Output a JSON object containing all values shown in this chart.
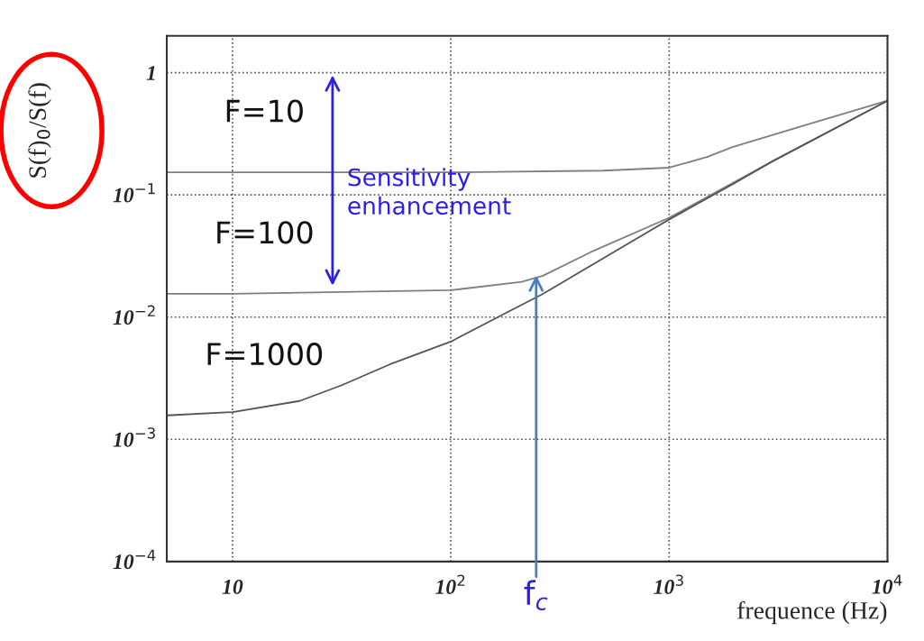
{
  "chart_data": {
    "type": "line",
    "xlabel": "frequence (Hz)",
    "ylabel": "S(f)$_{0}$/S(f)",
    "log": "xy",
    "grid": true,
    "marker": "none",
    "line_style": "solid",
    "xlim": [
      5,
      10000
    ],
    "ylim": [
      0.0001,
      2
    ],
    "xticks": [
      10,
      {
        "value": 100,
        "label": "10$^{2}$"
      },
      {
        "value": 1000,
        "label": "10$^{3}$"
      },
      {
        "value": 10000,
        "label": "10$^{4}$"
      }
    ],
    "yticks": [
      {
        "value": 0.0001,
        "label": "10$^{−4}$"
      },
      {
        "value": 0.001,
        "label": "10$^{−3}$"
      },
      {
        "value": 0.01,
        "label": "10$^{−2}$"
      },
      {
        "value": 0.1,
        "label": "10$^{−1}$"
      },
      1
    ],
    "series": [
      {
        "name": "F=10",
        "color": "#7f7f7f",
        "x": [
          5,
          10,
          100,
          500,
          1000,
          1490,
          1950,
          4060,
          10000
        ],
        "values": [
          0.153,
          0.153,
          0.153,
          0.158,
          0.167,
          0.204,
          0.246,
          0.365,
          0.59
        ]
      },
      {
        "name": "F=100",
        "color": "#7f7f7f",
        "x": [
          5,
          10,
          100,
          211,
          264,
          437,
          1000,
          3000,
          10000
        ],
        "values": [
          0.0155,
          0.0155,
          0.0166,
          0.0194,
          0.0218,
          0.034,
          0.065,
          0.19,
          0.59
        ]
      },
      {
        "name": "F=1000",
        "color": "#555555",
        "x": [
          5,
          10,
          20.3,
          31.5,
          52.5,
          100,
          186,
          264,
          1000,
          2000,
          3000,
          10000
        ],
        "values": [
          0.00157,
          0.00167,
          0.00206,
          0.00276,
          0.0041,
          0.0063,
          0.0112,
          0.0155,
          0.063,
          0.125,
          0.19,
          0.59
        ]
      }
    ],
    "annotations": [
      "Sensitivity enhancement",
      {
        "text": "f$_{c}$",
        "x": 246,
        "y": 0.022
      }
    ]
  }
}
